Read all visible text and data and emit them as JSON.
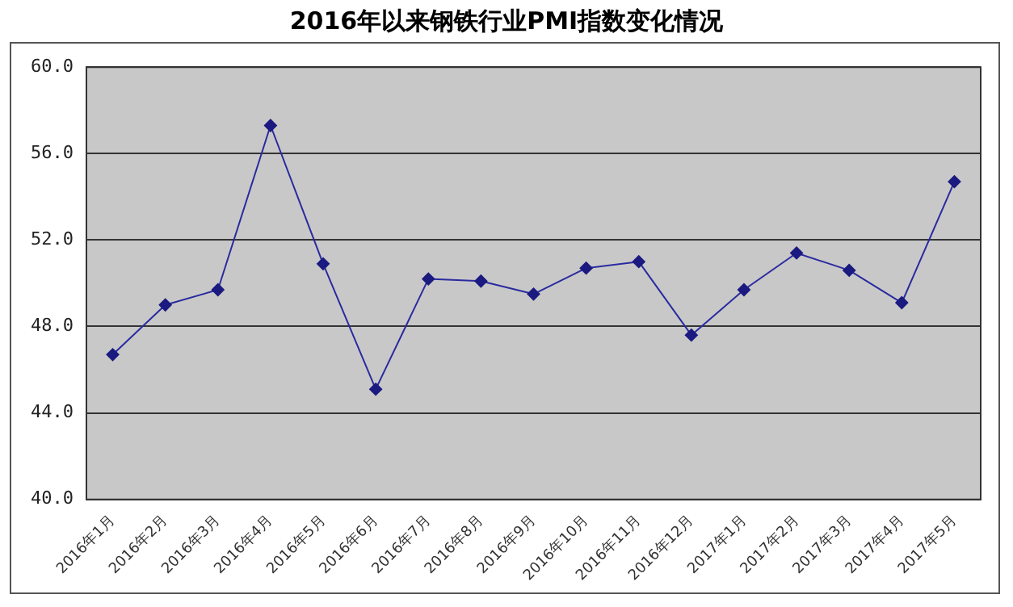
{
  "chart_data": {
    "type": "line",
    "title": "2016年以来钢铁行业PMI指数变化情况",
    "categories": [
      "2016年1月",
      "2016年2月",
      "2016年3月",
      "2016年4月",
      "2016年5月",
      "2016年6月",
      "2016年7月",
      "2016年8月",
      "2016年9月",
      "2016年10月",
      "2016年11月",
      "2016年12月",
      "2017年1月",
      "2017年2月",
      "2017年3月",
      "2017年4月",
      "2017年5月"
    ],
    "series": [
      {
        "color": "#2a2aa0",
        "values": [
          46.7,
          49.0,
          49.7,
          57.3,
          50.9,
          45.1,
          50.2,
          50.1,
          49.5,
          50.7,
          51.0,
          47.6,
          49.7,
          51.4,
          50.6,
          49.1,
          54.7
        ]
      }
    ],
    "ylim": [
      40,
      60
    ],
    "yticks": [
      {
        "value": 40,
        "label": "40.0"
      },
      {
        "value": 44,
        "label": "44.0"
      },
      {
        "value": 48,
        "label": "48.0"
      },
      {
        "value": 52,
        "label": "52.0"
      },
      {
        "value": 56,
        "label": "56.0"
      },
      {
        "value": 60,
        "label": "60.0"
      }
    ],
    "grid": "y",
    "legend": false,
    "marker": "diamond",
    "line_style": "solid"
  }
}
